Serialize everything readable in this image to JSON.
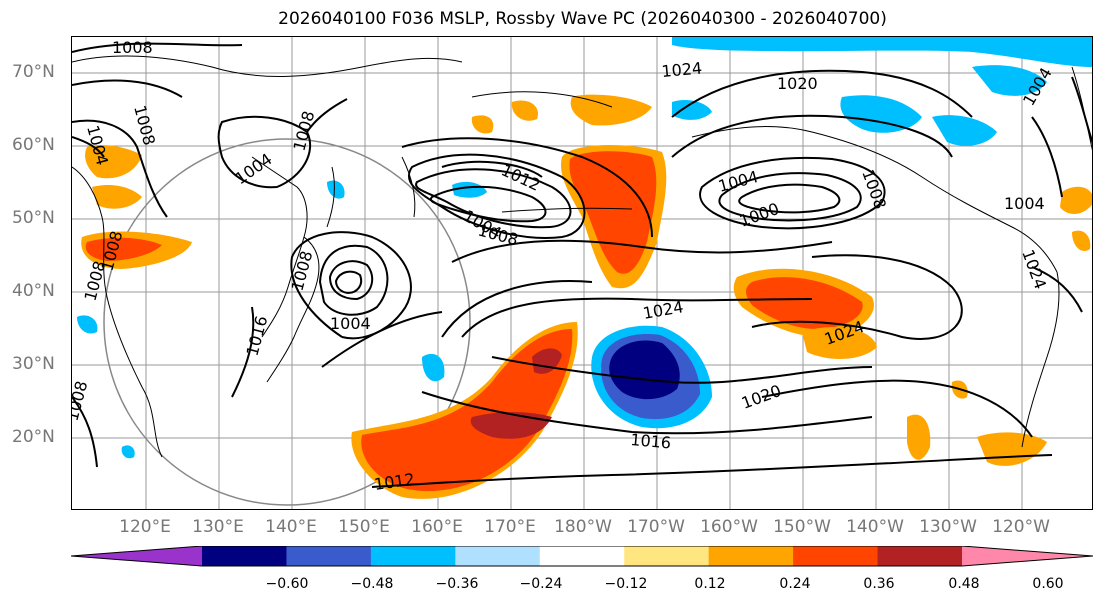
{
  "title": "2026040100 F036 MSLP, Rossby Wave PC (2026040300 - 2026040700)",
  "latitude_labels": [
    "70°N",
    "60°N",
    "50°N",
    "40°N",
    "30°N",
    "20°N"
  ],
  "longitude_labels": [
    "120°E",
    "130°E",
    "140°E",
    "150°E",
    "160°E",
    "170°E",
    "180°W",
    "170°W",
    "160°W",
    "150°W",
    "140°W",
    "130°W",
    "120°W"
  ],
  "colorbar": {
    "ticks": [
      "−0.60",
      "−0.48",
      "−0.36",
      "−0.24",
      "−0.12",
      "0.12",
      "0.24",
      "0.36",
      "0.48",
      "0.60"
    ],
    "colors": [
      "#9933cc",
      "#000080",
      "#3a5bcc",
      "#00bfff",
      "#b0e0ff",
      "#ffffff",
      "#ffe680",
      "#ffa500",
      "#ff4500",
      "#b22222",
      "#ff88aa"
    ]
  },
  "isobar_labels": [
    "1008",
    "1004",
    "1008",
    "1008",
    "1004",
    "1012",
    "1004",
    "1008",
    "1024",
    "1020",
    "1004",
    "1000",
    "1008",
    "1004",
    "1004",
    "1008",
    "1016",
    "1004",
    "1008",
    "1024",
    "1024",
    "1020",
    "1016",
    "1012",
    "1008",
    "1024",
    "1008"
  ]
}
